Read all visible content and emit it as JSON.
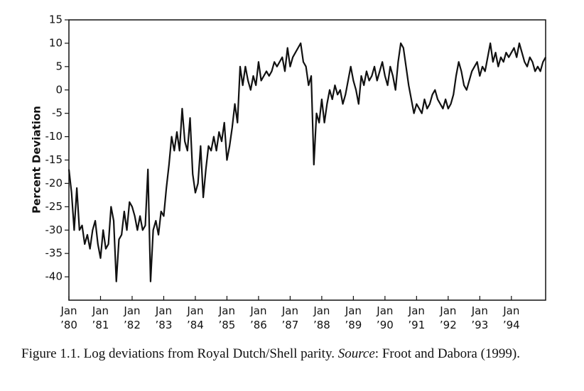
{
  "chart_data": {
    "type": "line",
    "ylabel": "Percent Deviation",
    "x": [
      "1980-01",
      "1980-02",
      "1980-03",
      "1980-04",
      "1980-05",
      "1980-06",
      "1980-07",
      "1980-08",
      "1980-09",
      "1980-10",
      "1980-11",
      "1980-12",
      "1981-01",
      "1981-02",
      "1981-03",
      "1981-04",
      "1981-05",
      "1981-06",
      "1981-07",
      "1981-08",
      "1981-09",
      "1981-10",
      "1981-11",
      "1981-12",
      "1982-01",
      "1982-02",
      "1982-03",
      "1982-04",
      "1982-05",
      "1982-06",
      "1982-07",
      "1982-08",
      "1982-09",
      "1982-10",
      "1982-11",
      "1982-12",
      "1983-01",
      "1983-02",
      "1983-03",
      "1983-04",
      "1983-05",
      "1983-06",
      "1983-07",
      "1983-08",
      "1983-09",
      "1983-10",
      "1983-11",
      "1983-12",
      "1984-01",
      "1984-02",
      "1984-03",
      "1984-04",
      "1984-05",
      "1984-06",
      "1984-07",
      "1984-08",
      "1984-09",
      "1984-10",
      "1984-11",
      "1984-12",
      "1985-01",
      "1985-02",
      "1985-03",
      "1985-04",
      "1985-05",
      "1985-06",
      "1985-07",
      "1985-08",
      "1985-09",
      "1985-10",
      "1985-11",
      "1985-12",
      "1986-01",
      "1986-02",
      "1986-03",
      "1986-04",
      "1986-05",
      "1986-06",
      "1986-07",
      "1986-08",
      "1986-09",
      "1986-10",
      "1986-11",
      "1986-12",
      "1987-01",
      "1987-02",
      "1987-03",
      "1987-04",
      "1987-05",
      "1987-06",
      "1987-07",
      "1987-08",
      "1987-09",
      "1987-10",
      "1987-11",
      "1987-12",
      "1988-01",
      "1988-02",
      "1988-03",
      "1988-04",
      "1988-05",
      "1988-06",
      "1988-07",
      "1988-08",
      "1988-09",
      "1988-10",
      "1988-11",
      "1988-12",
      "1989-01",
      "1989-02",
      "1989-03",
      "1989-04",
      "1989-05",
      "1989-06",
      "1989-07",
      "1989-08",
      "1989-09",
      "1989-10",
      "1989-11",
      "1989-12",
      "1990-01",
      "1990-02",
      "1990-03",
      "1990-04",
      "1990-05",
      "1990-06",
      "1990-07",
      "1990-08",
      "1990-09",
      "1990-10",
      "1990-11",
      "1990-12",
      "1991-01",
      "1991-02",
      "1991-03",
      "1991-04",
      "1991-05",
      "1991-06",
      "1991-07",
      "1991-08",
      "1991-09",
      "1991-10",
      "1991-11",
      "1991-12",
      "1992-01",
      "1992-02",
      "1992-03",
      "1992-04",
      "1992-05",
      "1992-06",
      "1992-07",
      "1992-08",
      "1992-09",
      "1992-10",
      "1992-11",
      "1992-12",
      "1993-01",
      "1993-02",
      "1993-03",
      "1993-04",
      "1993-05",
      "1993-06",
      "1993-07",
      "1993-08",
      "1993-09",
      "1993-10",
      "1993-11",
      "1993-12",
      "1994-01",
      "1994-02",
      "1994-03",
      "1994-04",
      "1994-05",
      "1994-06",
      "1994-07",
      "1994-08",
      "1994-09",
      "1994-10",
      "1994-11",
      "1994-12",
      "1995-01",
      "1995-02"
    ],
    "values": [
      -17,
      -22,
      -30,
      -21,
      -30,
      -29,
      -33,
      -31,
      -34,
      -30,
      -28,
      -33,
      -36,
      -30,
      -34,
      -33,
      -25,
      -28,
      -41,
      -32,
      -31,
      -26,
      -30,
      -24,
      -25,
      -27,
      -30,
      -27,
      -30,
      -29,
      -17,
      -41,
      -30,
      -28,
      -31,
      -26,
      -27,
      -21,
      -16,
      -10,
      -13,
      -9,
      -13,
      -4,
      -11,
      -13,
      -6,
      -18,
      -22,
      -20,
      -12,
      -23,
      -17,
      -12,
      -13,
      -10,
      -13,
      -9,
      -11,
      -7,
      -15,
      -12,
      -8,
      -3,
      -7,
      5,
      1,
      5,
      2,
      0,
      3,
      1,
      6,
      2,
      3,
      4,
      3,
      4,
      6,
      5,
      6,
      7,
      4,
      9,
      5,
      7,
      8,
      9,
      10,
      6,
      5,
      1,
      3,
      -16,
      -5,
      -7,
      -2,
      -7,
      -3,
      0,
      -2,
      1,
      -1,
      0,
      -3,
      -1,
      2,
      5,
      2,
      0,
      -3,
      3,
      1,
      4,
      2,
      3,
      5,
      2,
      4,
      6,
      3,
      1,
      5,
      3,
      0,
      6,
      10,
      9,
      5,
      1,
      -2,
      -5,
      -3,
      -4,
      -5,
      -2,
      -4,
      -3,
      -1,
      0,
      -2,
      -3,
      -4,
      -2,
      -4,
      -3,
      -1,
      3,
      6,
      4,
      1,
      0,
      2,
      4,
      5,
      6,
      3,
      5,
      4,
      7,
      10,
      6,
      8,
      5,
      7,
      6,
      8,
      7,
      8,
      9,
      7,
      10,
      8,
      6,
      5,
      7,
      6,
      4,
      5,
      4,
      6,
      7
    ],
    "color": "#111111",
    "xlim": [
      "1980-01",
      "1995-02"
    ],
    "xticks": [
      {
        "value": "1980-01",
        "label": "Jan ’80"
      },
      {
        "value": "1981-01",
        "label": "Jan ’81"
      },
      {
        "value": "1982-01",
        "label": "Jan ’82"
      },
      {
        "value": "1983-01",
        "label": "Jan ’83"
      },
      {
        "value": "1984-01",
        "label": "Jan ’84"
      },
      {
        "value": "1985-01",
        "label": "Jan ’85"
      },
      {
        "value": "1986-01",
        "label": "Jan ’86"
      },
      {
        "value": "1987-01",
        "label": "Jan ’87"
      },
      {
        "value": "1988-01",
        "label": "Jan ’88"
      },
      {
        "value": "1989-01",
        "label": "Jan ’89"
      },
      {
        "value": "1990-01",
        "label": "Jan ’90"
      },
      {
        "value": "1991-01",
        "label": "Jan ’91"
      },
      {
        "value": "1992-01",
        "label": "Jan ’92"
      },
      {
        "value": "1993-01",
        "label": "Jan ’93"
      },
      {
        "value": "1994-01",
        "label": "Jan ’94"
      }
    ],
    "ylim": [
      -45,
      15
    ],
    "yticks": [
      -40,
      -35,
      -30,
      -25,
      -20,
      -15,
      -10,
      -5,
      0,
      5,
      10,
      15
    ],
    "caption": {
      "before": "Figure 1.1. Log deviations from Royal Dutch/Shell parity.",
      "italic": "Source",
      "after": ": Froot and Dabora (1999)."
    }
  }
}
